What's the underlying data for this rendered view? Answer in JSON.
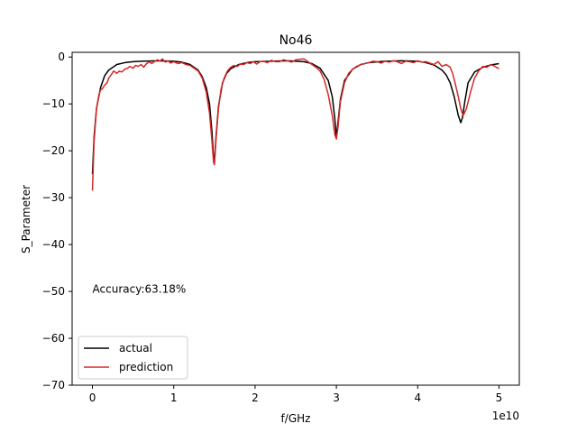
{
  "chart_data": {
    "type": "line",
    "title": "No46",
    "xlabel": "f/GHz",
    "ylabel": "S_Parameter",
    "x_offset_text": "1e10",
    "xlim": [
      -0.25,
      5.25
    ],
    "ylim": [
      -70,
      1
    ],
    "x_ticks": [
      0,
      1,
      2,
      3,
      4,
      5
    ],
    "x_tick_labels": [
      "0",
      "1",
      "2",
      "3",
      "4",
      "5"
    ],
    "y_ticks": [
      0,
      -10,
      -20,
      -30,
      -40,
      -50,
      -60,
      -70
    ],
    "y_tick_labels": [
      "0",
      "−10",
      "−20",
      "−30",
      "−40",
      "−50",
      "−60",
      "−70"
    ],
    "grid": false,
    "legend_position": "lower-left",
    "annotation": {
      "text": "Accuracy:63.18%",
      "x": 0.0,
      "y": -49.5
    },
    "series": [
      {
        "name": "actual",
        "color": "#000000",
        "x": [
          0.0,
          0.02,
          0.05,
          0.1,
          0.15,
          0.2,
          0.3,
          0.4,
          0.5,
          0.6,
          0.8,
          1.0,
          1.1,
          1.2,
          1.3,
          1.35,
          1.4,
          1.44,
          1.47,
          1.49,
          1.5,
          1.52,
          1.55,
          1.6,
          1.65,
          1.7,
          1.8,
          1.9,
          2.0,
          2.2,
          2.4,
          2.6,
          2.7,
          2.8,
          2.9,
          2.95,
          2.98,
          3.0,
          3.02,
          3.05,
          3.1,
          3.2,
          3.3,
          3.4,
          3.6,
          3.8,
          4.0,
          4.1,
          4.2,
          4.3,
          4.35,
          4.4,
          4.45,
          4.5,
          4.53,
          4.55,
          4.58,
          4.62,
          4.7,
          4.8,
          4.9,
          5.0
        ],
        "y": [
          -25.0,
          -17.0,
          -11.0,
          -6.5,
          -4.0,
          -2.8,
          -1.6,
          -1.2,
          -1.0,
          -0.9,
          -0.8,
          -0.9,
          -1.1,
          -1.6,
          -2.8,
          -4.2,
          -6.5,
          -10.0,
          -16.0,
          -21.5,
          -22.5,
          -17.0,
          -10.5,
          -5.5,
          -3.5,
          -2.5,
          -1.6,
          -1.2,
          -1.0,
          -0.9,
          -0.8,
          -1.0,
          -1.4,
          -2.4,
          -5.0,
          -8.5,
          -13.0,
          -17.0,
          -14.0,
          -9.0,
          -5.0,
          -2.6,
          -1.6,
          -1.2,
          -0.9,
          -0.8,
          -0.9,
          -1.2,
          -1.7,
          -2.8,
          -3.8,
          -5.5,
          -8.5,
          -12.5,
          -14.0,
          -13.0,
          -9.5,
          -5.5,
          -3.2,
          -2.2,
          -1.7,
          -1.4
        ]
      },
      {
        "name": "prediction",
        "color": "#d62728",
        "x": [
          0.0,
          0.02,
          0.05,
          0.08,
          0.1,
          0.12,
          0.15,
          0.18,
          0.2,
          0.23,
          0.26,
          0.28,
          0.3,
          0.33,
          0.36,
          0.4,
          0.43,
          0.46,
          0.5,
          0.53,
          0.56,
          0.6,
          0.63,
          0.66,
          0.7,
          0.73,
          0.76,
          0.8,
          0.83,
          0.86,
          0.9,
          0.93,
          0.96,
          1.0,
          1.05,
          1.1,
          1.15,
          1.2,
          1.25,
          1.3,
          1.35,
          1.4,
          1.44,
          1.47,
          1.49,
          1.5,
          1.52,
          1.55,
          1.58,
          1.62,
          1.66,
          1.7,
          1.74,
          1.78,
          1.82,
          1.86,
          1.9,
          1.94,
          1.98,
          2.02,
          2.06,
          2.1,
          2.15,
          2.2,
          2.25,
          2.3,
          2.35,
          2.4,
          2.45,
          2.5,
          2.55,
          2.6,
          2.65,
          2.7,
          2.75,
          2.8,
          2.85,
          2.9,
          2.95,
          2.98,
          3.0,
          3.02,
          3.05,
          3.1,
          3.15,
          3.2,
          3.25,
          3.3,
          3.35,
          3.4,
          3.45,
          3.5,
          3.55,
          3.6,
          3.65,
          3.7,
          3.75,
          3.8,
          3.85,
          3.9,
          3.95,
          4.0,
          4.05,
          4.1,
          4.15,
          4.2,
          4.25,
          4.3,
          4.35,
          4.4,
          4.43,
          4.46,
          4.5,
          4.53,
          4.56,
          4.6,
          4.65,
          4.7,
          4.75,
          4.8,
          4.85,
          4.9,
          4.95,
          5.0
        ],
        "y": [
          -28.5,
          -18.0,
          -11.0,
          -8.0,
          -7.0,
          -6.8,
          -6.0,
          -5.5,
          -4.5,
          -3.8,
          -3.0,
          -3.2,
          -3.5,
          -3.0,
          -3.2,
          -2.6,
          -2.4,
          -2.0,
          -2.4,
          -1.8,
          -2.0,
          -1.6,
          -2.2,
          -1.5,
          -1.0,
          -1.4,
          -1.0,
          -0.6,
          -0.9,
          -0.4,
          -1.1,
          -0.8,
          -1.3,
          -1.0,
          -1.4,
          -1.2,
          -1.6,
          -1.8,
          -2.4,
          -3.0,
          -4.5,
          -7.5,
          -12.0,
          -18.0,
          -22.5,
          -23.0,
          -17.5,
          -11.0,
          -7.0,
          -4.5,
          -3.0,
          -2.2,
          -1.8,
          -2.0,
          -1.5,
          -1.6,
          -1.2,
          -1.4,
          -1.0,
          -1.5,
          -1.0,
          -0.9,
          -1.2,
          -0.7,
          -1.0,
          -1.0,
          -0.6,
          -0.8,
          -1.1,
          -0.6,
          -0.5,
          -0.4,
          -1.0,
          -1.6,
          -2.2,
          -3.0,
          -4.8,
          -8.0,
          -12.5,
          -16.5,
          -17.5,
          -15.0,
          -9.5,
          -5.5,
          -3.5,
          -2.6,
          -2.0,
          -1.6,
          -1.4,
          -1.2,
          -0.9,
          -1.0,
          -1.3,
          -0.9,
          -1.1,
          -0.8,
          -1.0,
          -1.4,
          -0.9,
          -1.0,
          -1.2,
          -0.8,
          -1.1,
          -1.0,
          -1.3,
          -1.6,
          -1.0,
          -2.0,
          -1.6,
          -2.2,
          -3.5,
          -5.5,
          -8.5,
          -11.0,
          -12.5,
          -11.0,
          -7.5,
          -4.5,
          -3.0,
          -2.0,
          -2.2,
          -1.6,
          -2.0,
          -2.5
        ]
      }
    ]
  }
}
